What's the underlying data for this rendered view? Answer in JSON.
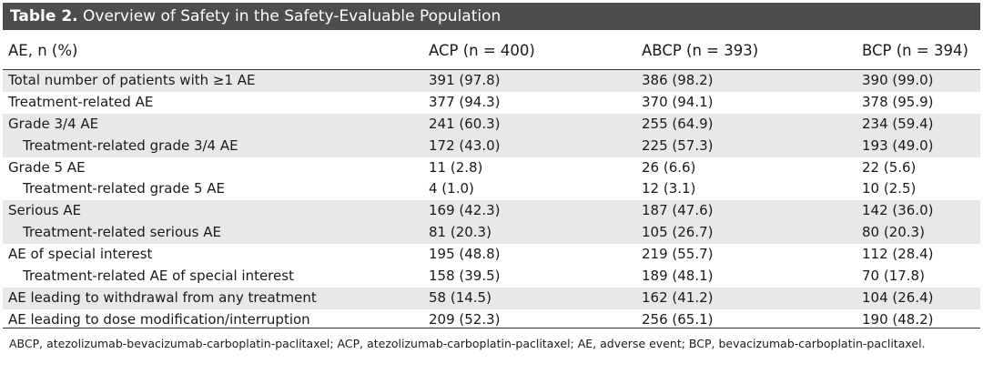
{
  "title": {
    "label": "Table 2.",
    "text": "Overview of Safety in the Safety-Evaluable Population"
  },
  "columns": [
    "AE, n (%)",
    "ACP (n = 400)",
    "ABCP (n = 393)",
    "BCP (n = 394)"
  ],
  "rows": [
    {
      "label": "Total number of patients with ≥1 AE",
      "acp": "391 (97.8)",
      "abcp": "386 (98.2)",
      "bcp": "390 (99.0)"
    },
    {
      "label": "Treatment-related AE",
      "acp": "377 (94.3)",
      "abcp": "370 (94.1)",
      "bcp": "378 (95.9)"
    },
    {
      "label": "Grade 3/4 AE",
      "acp": "241 (60.3)",
      "abcp": "255 (64.9)",
      "bcp": "234 (59.4)"
    },
    {
      "label": "Treatment-related grade 3/4 AE",
      "acp": "172 (43.0)",
      "abcp": "225 (57.3)",
      "bcp": "193 (49.0)"
    },
    {
      "label": "Grade 5 AE",
      "acp": "11 (2.8)",
      "abcp": "26 (6.6)",
      "bcp": "22 (5.6)"
    },
    {
      "label": "Treatment-related grade 5 AE",
      "acp": "4 (1.0)",
      "abcp": "12 (3.1)",
      "bcp": "10 (2.5)"
    },
    {
      "label": "Serious AE",
      "acp": "169 (42.3)",
      "abcp": "187 (47.6)",
      "bcp": "142 (36.0)"
    },
    {
      "label": "Treatment-related serious AE",
      "acp": "81 (20.3)",
      "abcp": "105 (26.7)",
      "bcp": "80 (20.3)"
    },
    {
      "label": "AE of special interest",
      "acp": "195 (48.8)",
      "abcp": "219 (55.7)",
      "bcp": "112 (28.4)"
    },
    {
      "label": "Treatment-related AE of special interest",
      "acp": "158 (39.5)",
      "abcp": "189 (48.1)",
      "bcp": "70 (17.8)"
    },
    {
      "label": "AE leading to withdrawal from any treatment",
      "acp": "58 (14.5)",
      "abcp": "162 (41.2)",
      "bcp": "104 (26.4)"
    },
    {
      "label": "AE leading to dose modification/interruption",
      "acp": "209 (52.3)",
      "abcp": "256 (65.1)",
      "bcp": "190 (48.2)"
    }
  ],
  "footnote": "ABCP, atezolizumab-bevacizumab-carboplatin-paclitaxel; ACP, atezolizumab-carboplatin-paclitaxel; AE, adverse event; BCP, bevacizumab-carboplatin-paclitaxel.",
  "colors": {
    "title_bg": "#4d4d4d",
    "row_shade": "#e8e8e8"
  }
}
